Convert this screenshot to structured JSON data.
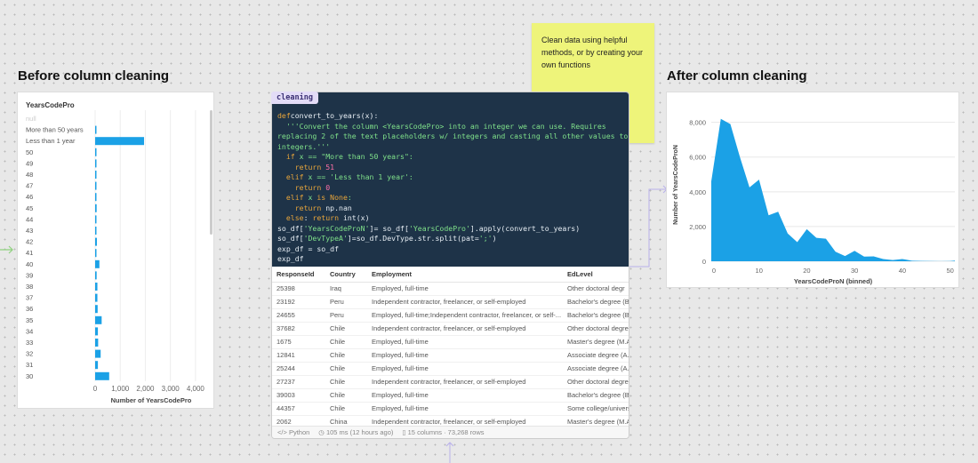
{
  "left_title": "Before column cleaning",
  "right_title": "After column cleaning",
  "sticky_note": "Clean data using helpful methods, or by creating your own functions",
  "cell": {
    "tag": "cleaning",
    "code": [
      [
        [
          "kw",
          "def"
        ],
        [
          "",
          "convert_to_years(x):"
        ]
      ],
      [
        [
          "str",
          "  '''Convert the column <YearsCodePro> into an integer we can use. Requires"
        ]
      ],
      [
        [
          "str",
          "replacing 2 of the text placeholders w/ integers and casting all other values to"
        ]
      ],
      [
        [
          "str",
          "integers.'''"
        ]
      ],
      [
        [
          "kw",
          "  if"
        ],
        [
          "str",
          " x == \"More than 50 years\":"
        ]
      ],
      [
        [
          "kw",
          "    return "
        ],
        [
          "num",
          "51"
        ]
      ],
      [
        [
          "kw",
          "  elif"
        ],
        [
          "str",
          " x == 'Less than 1 year':"
        ]
      ],
      [
        [
          "kw",
          "    return "
        ],
        [
          "num",
          "0"
        ]
      ],
      [
        [
          "kw",
          "  elif"
        ],
        [
          "str",
          " x "
        ],
        [
          "kw",
          "is None"
        ],
        [
          "str",
          ":"
        ]
      ],
      [
        [
          "kw",
          "    return"
        ],
        [
          "",
          " np.nan"
        ]
      ],
      [
        [
          "kw",
          "  else"
        ],
        [
          "",
          ": "
        ],
        [
          "kw",
          "return"
        ],
        [
          "",
          " int(x)"
        ]
      ],
      [
        [
          "",
          "so_df["
        ],
        [
          "str",
          "'YearsCodeProN'"
        ],
        [
          "",
          "]= so_df["
        ],
        [
          "str",
          "'YearsCodePro'"
        ],
        [
          "",
          "].apply(convert_to_years)"
        ]
      ],
      [
        [
          "",
          "so_df["
        ],
        [
          "str",
          "'DevTypeA'"
        ],
        [
          "",
          "]=so_df.DevType.str.split(pat="
        ],
        [
          "str",
          "';'"
        ],
        [
          "",
          ")"
        ]
      ],
      [
        [
          "",
          "exp_df = so_df"
        ]
      ],
      [
        [
          "",
          "exp_df"
        ]
      ]
    ],
    "table": {
      "columns": [
        "ResponseId",
        "Country",
        "Employment",
        "EdLevel"
      ],
      "rows": [
        [
          "25398",
          "Iraq",
          "Employed, full-time",
          "Other doctoral degr"
        ],
        [
          "23192",
          "Peru",
          "Independent contractor, freelancer, or self-employed",
          "Bachelor's degree (B."
        ],
        [
          "24655",
          "Peru",
          "Employed, full-time;Independent contractor, freelancer, or self-...",
          "Bachelor's degree (B."
        ],
        [
          "37682",
          "Chile",
          "Independent contractor, freelancer, or self-employed",
          "Other doctoral degre"
        ],
        [
          "1675",
          "Chile",
          "Employed, full-time",
          "Master's degree (M.A"
        ],
        [
          "12841",
          "Chile",
          "Employed, full-time",
          "Associate degree (A."
        ],
        [
          "25244",
          "Chile",
          "Employed, full-time",
          "Associate degree (A."
        ],
        [
          "27237",
          "Chile",
          "Independent contractor, freelancer, or self-employed",
          "Other doctoral degre"
        ],
        [
          "39003",
          "Chile",
          "Employed, full-time",
          "Bachelor's degree (B."
        ],
        [
          "44357",
          "Chile",
          "Employed, full-time",
          "Some college/univers"
        ],
        [
          "2062",
          "China",
          "Independent contractor, freelancer, or self-employed",
          "Master's degree (M.A"
        ]
      ]
    },
    "footer": {
      "language": "Python",
      "timing": "105 ms (12 hours ago)",
      "shape": "15 columns · 73,268 rows"
    }
  },
  "chart_data": [
    {
      "type": "bar",
      "orientation": "horizontal",
      "title": "YearsCodePro",
      "xlabel": "Number of YearsCodePro",
      "ylabel": "",
      "xlim": [
        0,
        4500
      ],
      "xticks": [
        0,
        1000,
        2000,
        3000,
        4000
      ],
      "xtick_labels": [
        "0",
        "1,000",
        "2,000",
        "3,000",
        "4,000"
      ],
      "color": "#1ba1e6",
      "grid": true,
      "categories": [
        "null",
        "More than 50 years",
        "Less than 1 year",
        "50",
        "49",
        "48",
        "47",
        "46",
        "45",
        "44",
        "43",
        "42",
        "41",
        "40",
        "39",
        "38",
        "37",
        "36",
        "35",
        "34",
        "33",
        "32",
        "31",
        "30"
      ],
      "values": [
        0,
        30,
        1950,
        5,
        5,
        20,
        5,
        20,
        60,
        30,
        40,
        70,
        50,
        170,
        60,
        90,
        90,
        100,
        260,
        110,
        120,
        220,
        110,
        560
      ]
    },
    {
      "type": "area",
      "title": "",
      "xlabel": "YearsCodeProN (binned)",
      "ylabel": "Number of YearsCodeProN",
      "xlim": [
        0,
        51
      ],
      "ylim": [
        0,
        8800
      ],
      "xticks": [
        0,
        10,
        20,
        30,
        40,
        50
      ],
      "yticks": [
        0,
        2000,
        4000,
        6000,
        8000
      ],
      "ytick_labels": [
        "0",
        "2,000",
        "4,000",
        "6,000",
        "8,000"
      ],
      "color": "#1ba1e6",
      "grid": true,
      "x": [
        0,
        2,
        4,
        6,
        8,
        10,
        12,
        14,
        16,
        18,
        20,
        22,
        24,
        26,
        28,
        30,
        32,
        34,
        36,
        38,
        40,
        42,
        44,
        46,
        48,
        50,
        51
      ],
      "y": [
        4600,
        8200,
        7900,
        6000,
        4250,
        4700,
        2650,
        2850,
        1600,
        1100,
        1850,
        1350,
        1300,
        550,
        300,
        600,
        270,
        280,
        130,
        70,
        130,
        30,
        20,
        10,
        5,
        10,
        40
      ]
    }
  ]
}
